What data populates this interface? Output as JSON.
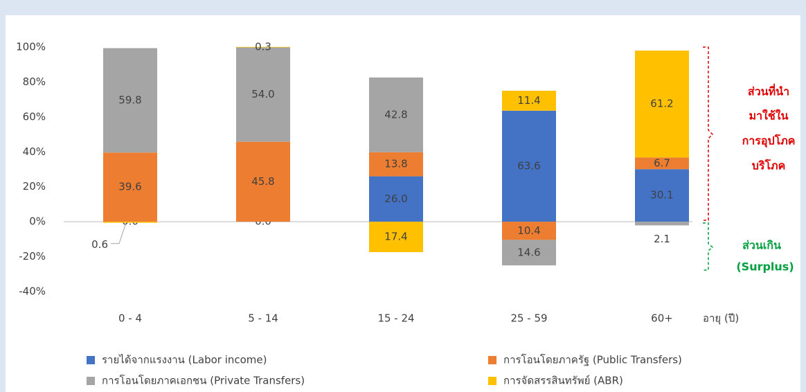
{
  "chart_data": {
    "type": "stacked_bar",
    "categories": [
      "0 - 4",
      "5 - 14",
      "15 - 24",
      "25 - 59",
      "60+"
    ],
    "x_label": "อายุ (ปี)",
    "series": [
      {
        "name": "รายได้จากแรงงาน (Labor income)",
        "color": "#4472c4",
        "values": [
          0.0,
          0.0,
          26.0,
          63.6,
          30.1
        ],
        "value_labels": [
          "0.0",
          "0.0",
          "26.0",
          "63.6",
          "30.1"
        ]
      },
      {
        "name": "การโอนโดยภาครัฐ (Public Transfers)",
        "color": "#ed7d31",
        "values": [
          39.6,
          45.8,
          13.8,
          -10.4,
          6.7
        ],
        "value_labels": [
          "39.6",
          "45.8",
          "13.8",
          "10.4",
          "6.7"
        ]
      },
      {
        "name": "การโอนโดยภาคเอกชน (Private Transfers)",
        "color": "#a5a5a5",
        "values": [
          59.8,
          54.0,
          42.8,
          -14.6,
          -2.1
        ],
        "value_labels": [
          "59.8",
          "54.0",
          "42.8",
          "14.6",
          "2.1"
        ]
      },
      {
        "name": "การจัดสรรสินทรัพย์ (ABR)",
        "color": "#ffc000",
        "values": [
          -0.6,
          0.3,
          -17.4,
          11.4,
          61.2
        ],
        "value_labels": [
          "0.6",
          "0.3",
          "17.4",
          "11.4",
          "61.2"
        ]
      }
    ],
    "ylim": [
      -40,
      100
    ],
    "yticks": [
      {
        "value": -40,
        "label": "-40%"
      },
      {
        "value": -20,
        "label": "-20%"
      },
      {
        "value": 0,
        "label": "0%"
      },
      {
        "value": 20,
        "label": "20%"
      },
      {
        "value": 40,
        "label": "40%"
      },
      {
        "value": 60,
        "label": "60%"
      },
      {
        "value": 80,
        "label": "80%"
      },
      {
        "value": 100,
        "label": "100%"
      }
    ],
    "annotations": {
      "consumption": [
        "ส่วนที่นำ",
        "มาใช้ใน",
        "การอุปโภค",
        "บริโภค"
      ],
      "surplus": [
        "ส่วนเกิน",
        "(Surplus)"
      ]
    }
  }
}
